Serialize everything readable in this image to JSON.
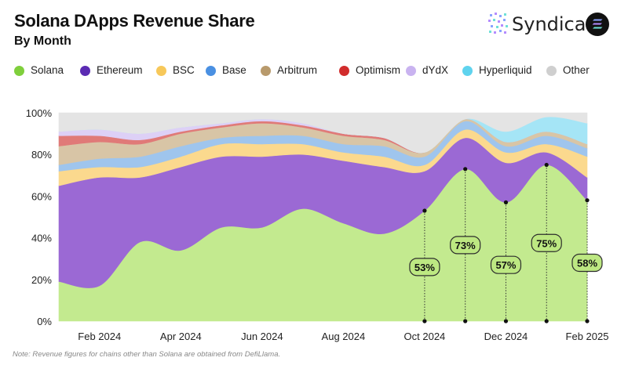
{
  "header": {
    "title": "Solana DApps Revenue Share",
    "subtitle": "By Month",
    "brand_name": "Syndica"
  },
  "colors": {
    "Solana": "#c3ea8f",
    "Ethereum": "#9b69d4",
    "BSC": "#fbd98e",
    "Base": "#9fc5ed",
    "Arbitrum": "#d8c5a6",
    "Optimism": "#e07a78",
    "dYdX": "#ddd0f6",
    "Hyperliquid": "#a5e5f6",
    "Other": "#e4e4e4",
    "callout_fill": "#bde882",
    "callout_stroke": "#2c2c2c",
    "brand_circle": "#111111",
    "brand_accent_1": "#8ba3ff",
    "brand_accent_2": "#b48cff",
    "brand_accent_3": "#6fe0d8"
  },
  "legend": [
    {
      "name": "Solana",
      "color": "#7fcf3c"
    },
    {
      "name": "Ethereum",
      "color": "#5b2bb3"
    },
    {
      "name": "BSC",
      "color": "#f7c85a"
    },
    {
      "name": "Base",
      "color": "#4a90e2"
    },
    {
      "name": "Arbitrum",
      "color": "#b89a6c"
    },
    {
      "name": "Optimism",
      "color": "#d12c2c"
    },
    {
      "name": "dYdX",
      "color": "#c9b3f0"
    },
    {
      "name": "Hyperliquid",
      "color": "#5fd3ee"
    },
    {
      "name": "Other",
      "color": "#cfcfcf"
    }
  ],
  "chart_data": {
    "type": "area",
    "stacked": true,
    "normalized": true,
    "title": "Solana DApps Revenue Share",
    "subtitle": "By Month",
    "xlabel": "",
    "ylabel": "",
    "ylim": [
      0,
      100
    ],
    "yticks": [
      "0%",
      "20%",
      "40%",
      "60%",
      "80%",
      "100%"
    ],
    "x": [
      "Jan 2024",
      "Feb 2024",
      "Mar 2024",
      "Apr 2024",
      "May 2024",
      "Jun 2024",
      "Jul 2024",
      "Aug 2024",
      "Sep 2024",
      "Oct 2024",
      "Nov 2024",
      "Dec 2024",
      "Jan 2025",
      "Feb 2025"
    ],
    "xtick_labels": [
      "Feb 2024",
      "Apr 2024",
      "Jun 2024",
      "Aug 2024",
      "Oct 2024",
      "Dec 2024",
      "Feb 2025"
    ],
    "series": [
      {
        "name": "Solana",
        "values": [
          19,
          17,
          38,
          34,
          45,
          45,
          54,
          47,
          42,
          53,
          73,
          57,
          75,
          58
        ]
      },
      {
        "name": "Ethereum",
        "values": [
          46,
          52,
          31,
          40,
          34,
          34,
          26,
          30,
          32,
          19,
          15,
          19,
          6,
          11
        ]
      },
      {
        "name": "BSC",
        "values": [
          7,
          5,
          5,
          5,
          6,
          6,
          5,
          4,
          5,
          3,
          4,
          5,
          4,
          10
        ]
      },
      {
        "name": "Base",
        "values": [
          3,
          4,
          5,
          5,
          3,
          4,
          4,
          4,
          5,
          4,
          4,
          3,
          4,
          4
        ]
      },
      {
        "name": "Arbitrum",
        "values": [
          9,
          8,
          6,
          6,
          5,
          6,
          4,
          4,
          3,
          2,
          1,
          2,
          2,
          2
        ]
      },
      {
        "name": "Optimism",
        "values": [
          5,
          3,
          2,
          1,
          1,
          1,
          1,
          1,
          1,
          0,
          0,
          0,
          0,
          0
        ]
      },
      {
        "name": "dYdX",
        "values": [
          2,
          3,
          3,
          2,
          1,
          1,
          1,
          0,
          0,
          0,
          0,
          0,
          0,
          0
        ]
      },
      {
        "name": "Hyperliquid",
        "values": [
          0,
          0,
          0,
          0,
          0,
          0,
          0,
          0,
          0,
          0,
          0,
          5,
          7,
          10
        ]
      },
      {
        "name": "Other",
        "values": [
          9,
          8,
          10,
          7,
          5,
          3,
          5,
          10,
          12,
          19,
          3,
          9,
          2,
          5
        ]
      }
    ],
    "annotations": [
      {
        "series": "Solana",
        "x": "Oct 2024",
        "label": "53%"
      },
      {
        "series": "Solana",
        "x": "Nov 2024",
        "label": "73%"
      },
      {
        "series": "Solana",
        "x": "Dec 2024",
        "label": "57%"
      },
      {
        "series": "Solana",
        "x": "Jan 2025",
        "label": "75%"
      },
      {
        "series": "Solana",
        "x": "Feb 2025",
        "label": "58%"
      }
    ]
  },
  "footer": {
    "note": "Note: Revenue figures for chains other than Solana are obtained from DefiLlama."
  }
}
